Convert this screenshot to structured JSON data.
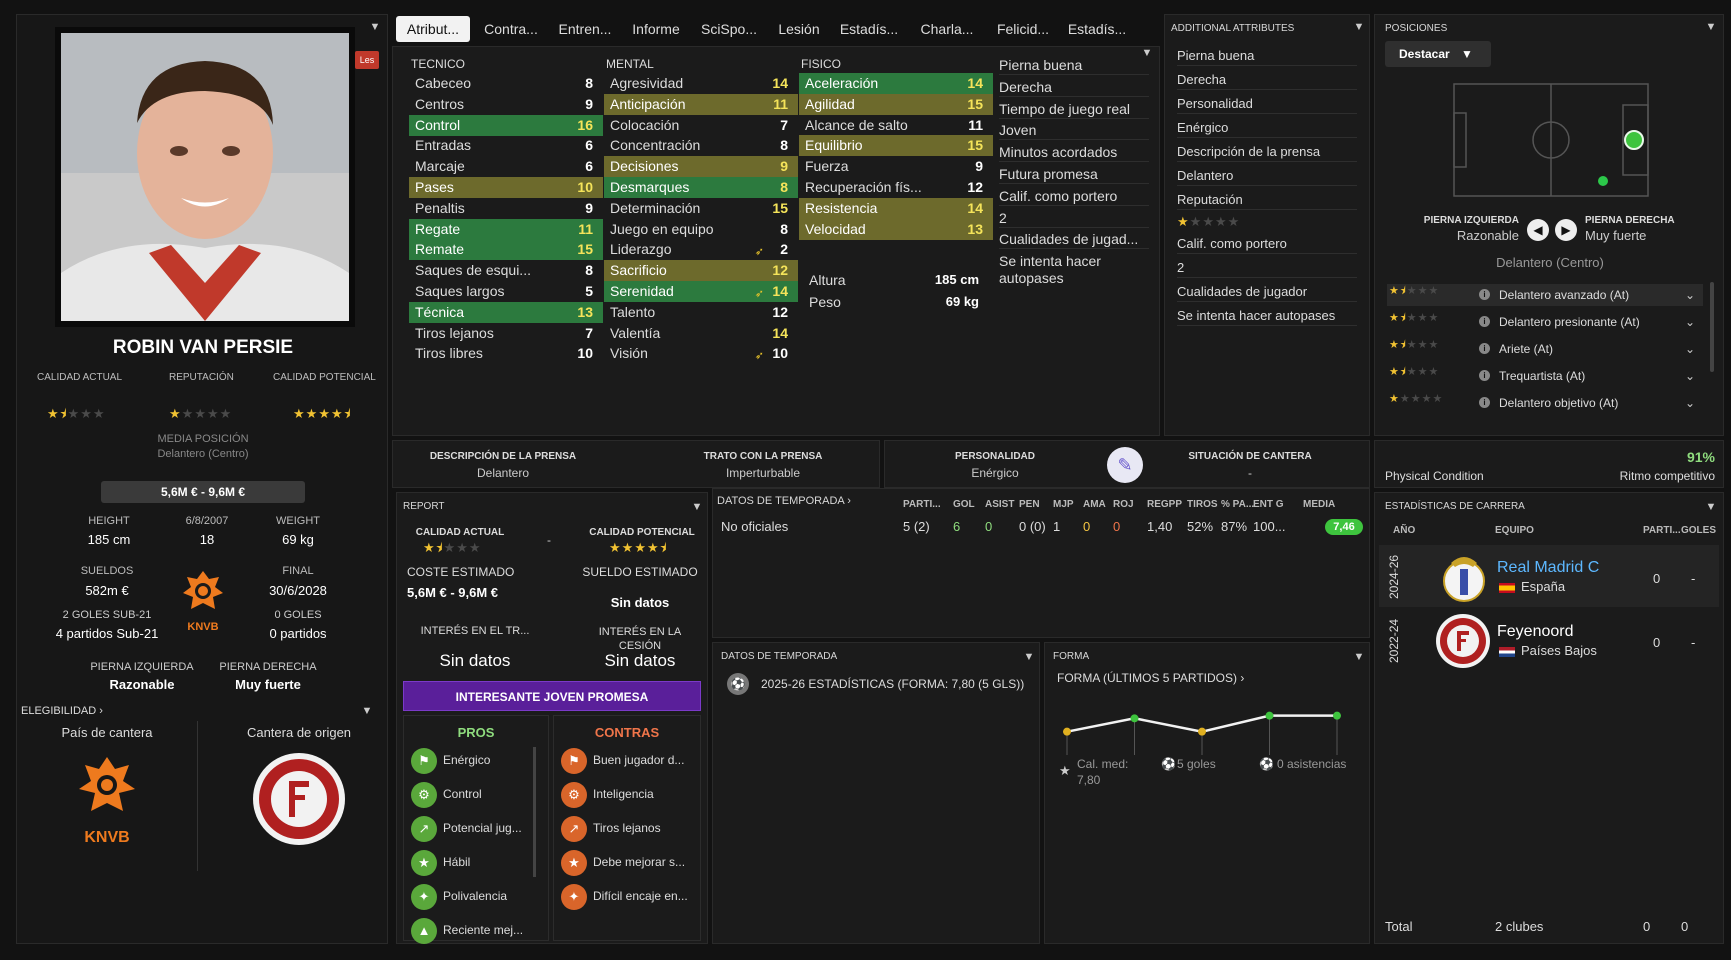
{
  "player": {
    "name": "ROBIN VAN PERSIE",
    "tag": "Les",
    "calidad_actual_label": "CALIDAD ACTUAL",
    "reputacion_label": "REPUTACIÓN",
    "calidad_potencial_label": "CALIDAD POTENCIAL",
    "ca_stars": 1.5,
    "rep_stars": 1,
    "cp_stars": 4.5,
    "media_label": "MEDIA POSICIÓN",
    "position_label": "Delantero (Centro)",
    "value": "5,6M € - 9,6M €",
    "height_label": "HEIGHT",
    "height": "185 cm",
    "dob": "6/8/2007",
    "age": "18",
    "weight_label": "WEIGHT",
    "weight": "69 kg",
    "wages_label": "SUELDOS",
    "wages": "582m €",
    "contract_label": "FINAL",
    "contract": "30/6/2028",
    "u21_goals": "2 GOLES SUB-21",
    "u21_apps": "4 partidos Sub-21",
    "goals": "0 GOLES",
    "apps": "0 partidos",
    "left_foot_label": "PIERNA IZQUIERDA",
    "left_foot": "Razonable",
    "right_foot_label": "PIERNA DERECHA",
    "right_foot": "Muy fuerte",
    "eligibility_label": "ELEGIBILIDAD",
    "youth_country_label": "País de cantera",
    "youth_club_label": "Cantera de origen",
    "knvb": "KNVB"
  },
  "tabs": [
    "Atribut...",
    "Contra...",
    "Entren...",
    "Informe",
    "SciSpo...",
    "Lesión",
    "Estadís...",
    "Charla...",
    "Felicid...",
    "Estadís..."
  ],
  "attributes": {
    "tecnico_label": "TECNICO",
    "mental_label": "MENTAL",
    "fisico_label": "FISICO",
    "tecnico": [
      {
        "n": "Cabeceo",
        "v": "8",
        "h": ""
      },
      {
        "n": "Centros",
        "v": "9",
        "h": ""
      },
      {
        "n": "Control",
        "v": "16",
        "h": "g"
      },
      {
        "n": "Entradas",
        "v": "6",
        "h": ""
      },
      {
        "n": "Marcaje",
        "v": "6",
        "h": ""
      },
      {
        "n": "Pases",
        "v": "10",
        "h": "o"
      },
      {
        "n": "Penaltis",
        "v": "9",
        "h": ""
      },
      {
        "n": "Regate",
        "v": "11",
        "h": "g"
      },
      {
        "n": "Remate",
        "v": "15",
        "h": "g"
      },
      {
        "n": "Saques de esqui...",
        "v": "8",
        "h": ""
      },
      {
        "n": "Saques largos",
        "v": "5",
        "h": ""
      },
      {
        "n": "Técnica",
        "v": "13",
        "h": "g"
      },
      {
        "n": "Tiros lejanos",
        "v": "7",
        "h": ""
      },
      {
        "n": "Tiros libres",
        "v": "10",
        "h": ""
      }
    ],
    "mental": [
      {
        "n": "Agresividad",
        "v": "14",
        "h": ""
      },
      {
        "n": "Anticipación",
        "v": "11",
        "h": "o"
      },
      {
        "n": "Colocación",
        "v": "7",
        "h": ""
      },
      {
        "n": "Concentración",
        "v": "8",
        "h": ""
      },
      {
        "n": "Decisiones",
        "v": "9",
        "h": "o"
      },
      {
        "n": "Desmarques",
        "v": "8",
        "h": "g"
      },
      {
        "n": "Determinación",
        "v": "15",
        "h": ""
      },
      {
        "n": "Juego en equipo",
        "v": "8",
        "h": ""
      },
      {
        "n": "Liderazgo",
        "v": "2",
        "h": "",
        "a": true
      },
      {
        "n": "Sacrificio",
        "v": "12",
        "h": "o"
      },
      {
        "n": "Serenidad",
        "v": "14",
        "h": "g",
        "a": true
      },
      {
        "n": "Talento",
        "v": "12",
        "h": ""
      },
      {
        "n": "Valentía",
        "v": "14",
        "h": ""
      },
      {
        "n": "Visión",
        "v": "10",
        "h": "",
        "a": true
      }
    ],
    "fisico": [
      {
        "n": "Aceleración",
        "v": "14",
        "h": "g"
      },
      {
        "n": "Agilidad",
        "v": "15",
        "h": "o"
      },
      {
        "n": "Alcance de salto",
        "v": "11",
        "h": ""
      },
      {
        "n": "Equilibrio",
        "v": "15",
        "h": "o"
      },
      {
        "n": "Fuerza",
        "v": "9",
        "h": ""
      },
      {
        "n": "Recuperación fís...",
        "v": "12",
        "h": ""
      },
      {
        "n": "Resistencia",
        "v": "14",
        "h": "o"
      },
      {
        "n": "Velocidad",
        "v": "13",
        "h": "o"
      }
    ],
    "altura_label": "Altura",
    "altura": "185 cm",
    "peso_label": "Peso",
    "peso": "69 kg",
    "side": [
      "Pierna buena",
      "Derecha",
      "Tiempo de juego real",
      "Joven",
      "Minutos acordados",
      "Futura promesa",
      "Calif. como portero",
      "2",
      "Cualidades de jugad...",
      "Se intenta hacer autopases"
    ]
  },
  "additional": {
    "title": "ADDITIONAL ATTRIBUTES",
    "items": [
      "Pierna buena",
      "Derecha",
      "Personalidad",
      "Enérgico",
      "Descripción de la prensa",
      "Delantero",
      "Reputación",
      "Calif. como portero",
      "2",
      "Cualidades de jugador",
      "Se intenta hacer autopases"
    ],
    "rep_stars": 1
  },
  "posiciones": {
    "title": "POSICIONES",
    "button": "Destacar",
    "left_foot_label": "PIERNA IZQUIERDA",
    "left_foot": "Razonable",
    "right_foot_label": "PIERNA DERECHA",
    "right_foot": "Muy fuerte",
    "position": "Delantero (Centro)",
    "roles": [
      {
        "n": "Delantero avanzado (At)",
        "s": 1.5
      },
      {
        "n": "Delantero presionante (At)",
        "s": 1.5
      },
      {
        "n": "Ariete (At)",
        "s": 1.5
      },
      {
        "n": "Trequartista (At)",
        "s": 1.5
      },
      {
        "n": "Delantero objetivo (At)",
        "s": 1
      }
    ]
  },
  "press": {
    "desc_label": "DESCRIPCIÓN DE LA PRENSA",
    "desc": "Delantero",
    "trato_label": "TRATO CON LA PRENSA",
    "trato": "Imperturbable",
    "pers_label": "PERSONALIDAD",
    "pers": "Enérgico",
    "cantera_label": "SITUACIÓN DE CANTERA",
    "cantera": "-"
  },
  "condition": {
    "label": "Physical Condition",
    "pct": "91%",
    "ritmo": "Ritmo competitivo"
  },
  "report": {
    "title": "REPORT",
    "ca_label": "CALIDAD ACTUAL",
    "cp_label": "CALIDAD POTENCIAL",
    "ca_stars": 1.5,
    "cp_stars": 4.5,
    "dash": "-",
    "coste_label": "COSTE ESTIMADO",
    "coste": "5,6M € - 9,6M €",
    "sueldo_label": "SUELDO ESTIMADO",
    "sueldo": "Sin datos",
    "interes_tr_label": "INTERÉS EN EL TR...",
    "interes_tr": "Sin datos",
    "interes_ces_label": "INTERÉS EN LA CESIÓN",
    "interes_ces": "Sin datos",
    "banner": "INTERESANTE JOVEN PROMESA",
    "pros_label": "PROS",
    "contras_label": "CONTRAS",
    "pros": [
      "Enérgico",
      "Control",
      "Potencial jug...",
      "Hábil",
      "Polivalencia",
      "Reciente mej..."
    ],
    "contras": [
      "Buen jugador d...",
      "Inteligencia",
      "Tiros lejanos",
      "Debe mejorar s...",
      "Difícil encaje en..."
    ]
  },
  "season": {
    "title": "DATOS DE TEMPORADA",
    "cols": [
      "PARTI...",
      "GOL",
      "ASIST",
      "PEN",
      "MJP",
      "AMA",
      "ROJ",
      "REGPP",
      "TIROS",
      "% PA...",
      "ENT G",
      "MEDIA"
    ],
    "row_label": "No oficiales",
    "row": [
      "5 (2)",
      "6",
      "0",
      "0 (0)",
      "1",
      "0",
      "0",
      "1,40",
      "52%",
      "87%",
      "100..."
    ],
    "media": "7,46"
  },
  "season2": {
    "title": "DATOS DE TEMPORADA",
    "line": "2025-26 ESTADÍSTICAS (FORMA: 7,80 (5 GLS))"
  },
  "forma": {
    "title": "FORMA",
    "sub": "FORMA (ÚLTIMOS 5 PARTIDOS)",
    "cal_label": "Cal. med:",
    "cal": "7,80",
    "goles": "5 goles",
    "asist": "0 asistencias",
    "chart_data": {
      "type": "line",
      "values": [
        7.5,
        8.0,
        7.5,
        8.1,
        8.1
      ],
      "colors": [
        "#e0b020",
        "#3ec43e",
        "#e0b020",
        "#3ec43e",
        "#3ec43e"
      ]
    }
  },
  "career": {
    "title": "ESTADÍSTICAS DE CARRERA",
    "col_year": "AÑO",
    "col_team": "EQUIPO",
    "col_apps": "PARTI...",
    "col_goals": "GOLES",
    "rows": [
      {
        "year": "2024-26",
        "team": "Real Madrid C",
        "country": "España",
        "apps": "0",
        "goals": "-"
      },
      {
        "year": "2022-24",
        "team": "Feyenoord",
        "country": "Países Bajos",
        "apps": "0",
        "goals": "-"
      }
    ],
    "total_label": "Total",
    "total_clubs": "2 clubes",
    "total_apps": "0",
    "total_goals": "0"
  }
}
